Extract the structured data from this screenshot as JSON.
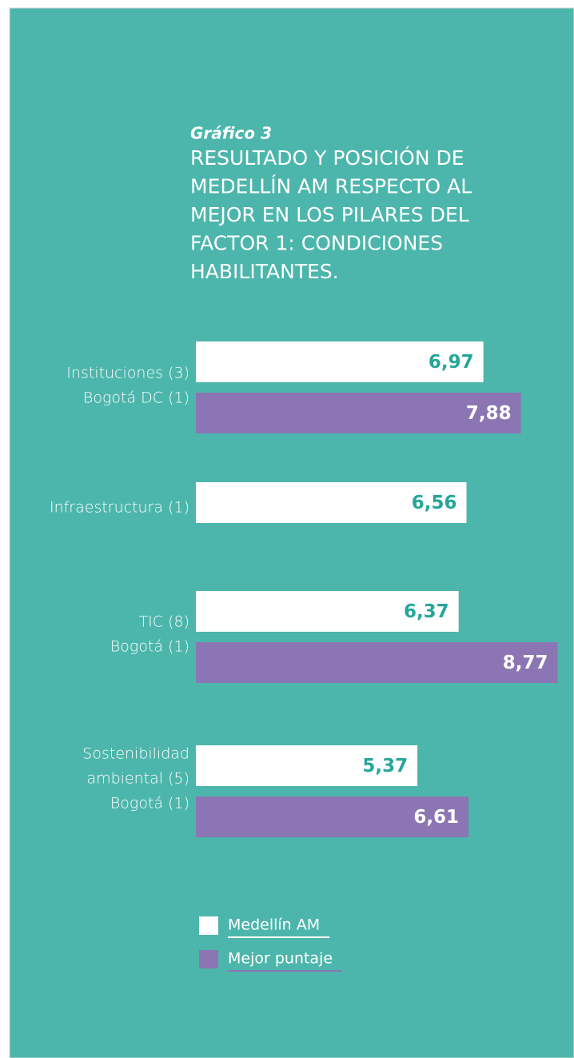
{
  "chart_data": {
    "type": "bar",
    "orientation": "horizontal",
    "subtitle": "Gráfico 3",
    "title": [
      "RESULTADO Y POSICIÓN DE",
      "MEDELLÍN AM RESPECTO AL",
      "MEJOR EN LOS PILARES DEL",
      "FACTOR 1: CONDICIONES",
      "HABILITANTES."
    ],
    "categories": [
      [
        "Instituciones (3)",
        "Bogotá DC (1)"
      ],
      [
        "Infraestructura (1)"
      ],
      [
        "TIC (8)",
        "Bogotá (1)"
      ],
      [
        "Sostenibilidad",
        "ambiental (5)",
        "Bogotá (1)"
      ]
    ],
    "series": [
      {
        "name": "Medellín AM",
        "color": "#ffffff",
        "label_color": "#26a69a",
        "values": [
          6.97,
          6.56,
          6.37,
          5.37
        ],
        "value_labels": [
          "6,97",
          "6,56",
          "6,37",
          "5,37"
        ]
      },
      {
        "name": "Mejor puntaje",
        "color": "#8b75b3",
        "label_color": "#ffffff",
        "values": [
          7.88,
          null,
          8.77,
          6.61
        ],
        "value_labels": [
          "7,88",
          null,
          "8,77",
          "6,61"
        ]
      }
    ]
  }
}
